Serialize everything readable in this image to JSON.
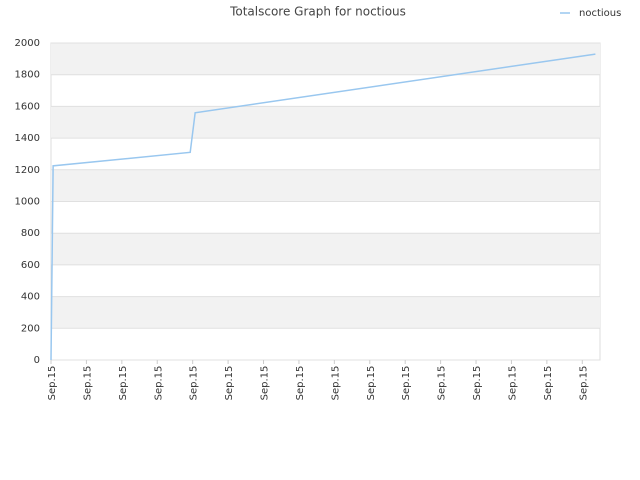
{
  "chart_data": {
    "type": "line",
    "title": "Totalscore Graph for noctious",
    "x": [
      0,
      0.03,
      0.06,
      3.93,
      4.07,
      15.37
    ],
    "series": [
      {
        "name": "noctious",
        "color": "#99c7ef",
        "values": [
          0,
          610,
          1225,
          1310,
          1560,
          1930
        ]
      }
    ],
    "xlim": [
      0,
      15.5
    ],
    "xticks": [
      {
        "value": 0,
        "label": "Sep.15"
      },
      {
        "value": 1,
        "label": "Sep.15"
      },
      {
        "value": 2,
        "label": "Sep.15"
      },
      {
        "value": 3,
        "label": "Sep.15"
      },
      {
        "value": 4,
        "label": "Sep.15"
      },
      {
        "value": 5,
        "label": "Sep.15"
      },
      {
        "value": 6,
        "label": "Sep.15"
      },
      {
        "value": 7,
        "label": "Sep.15"
      },
      {
        "value": 8,
        "label": "Sep.15"
      },
      {
        "value": 9,
        "label": "Sep.15"
      },
      {
        "value": 10,
        "label": "Sep.15"
      },
      {
        "value": 11,
        "label": "Sep.15"
      },
      {
        "value": 12,
        "label": "Sep.15"
      },
      {
        "value": 13,
        "label": "Sep.15"
      },
      {
        "value": 14,
        "label": "Sep.15"
      },
      {
        "value": 15,
        "label": "Sep.15"
      }
    ],
    "ylim": [
      0,
      2000
    ],
    "yticks": [
      0,
      200,
      400,
      600,
      800,
      1000,
      1200,
      1400,
      1600,
      1800,
      2000
    ],
    "grid": true,
    "legend": "top-right"
  }
}
